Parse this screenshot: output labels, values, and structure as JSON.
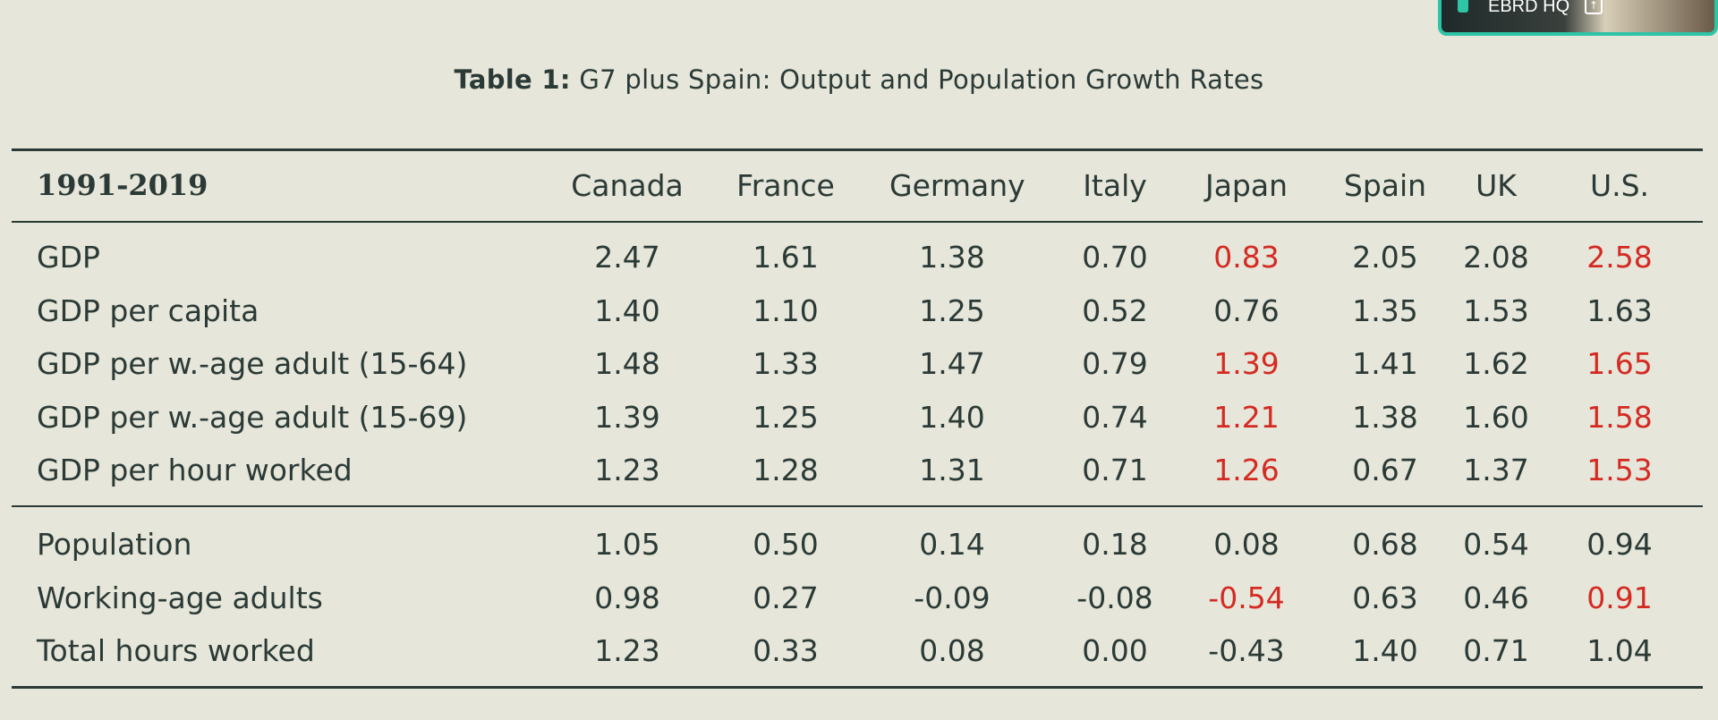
{
  "overlay": {
    "video_label": "EBRD HQ",
    "accent_color": "#2ec4a6"
  },
  "caption": {
    "prefix": "Table 1:",
    "text": "G7 plus Spain: Output and Population Growth Rates"
  },
  "table": {
    "period_label": "1991-2019",
    "columns": [
      "Canada",
      "France",
      "Germany",
      "Italy",
      "Japan",
      "Spain",
      "UK",
      "U.S."
    ],
    "highlight_color": "#d42a22",
    "groups": [
      {
        "rows": [
          {
            "label": "GDP",
            "values": [
              "2.47",
              "1.61",
              "1.38",
              "0.70",
              "0.83",
              "2.05",
              "2.08",
              "2.58"
            ],
            "red": [
              false,
              false,
              false,
              false,
              true,
              false,
              false,
              true
            ]
          },
          {
            "label": "GDP per capita",
            "values": [
              "1.40",
              "1.10",
              "1.25",
              "0.52",
              "0.76",
              "1.35",
              "1.53",
              "1.63"
            ],
            "red": [
              false,
              false,
              false,
              false,
              false,
              false,
              false,
              false
            ]
          },
          {
            "label": "GDP per w.-age adult (15-64)",
            "values": [
              "1.48",
              "1.33",
              "1.47",
              "0.79",
              "1.39",
              "1.41",
              "1.62",
              "1.65"
            ],
            "red": [
              false,
              false,
              false,
              false,
              true,
              false,
              false,
              true
            ]
          },
          {
            "label": "GDP per w.-age adult (15-69)",
            "values": [
              "1.39",
              "1.25",
              "1.40",
              "0.74",
              "1.21",
              "1.38",
              "1.60",
              "1.58"
            ],
            "red": [
              false,
              false,
              false,
              false,
              true,
              false,
              false,
              true
            ]
          },
          {
            "label": "GDP per hour worked",
            "values": [
              "1.23",
              "1.28",
              "1.31",
              "0.71",
              "1.26",
              "0.67",
              "1.37",
              "1.53"
            ],
            "red": [
              false,
              false,
              false,
              false,
              true,
              false,
              false,
              true
            ]
          }
        ]
      },
      {
        "rows": [
          {
            "label": "Population",
            "values": [
              "1.05",
              "0.50",
              "0.14",
              "0.18",
              "0.08",
              "0.68",
              "0.54",
              "0.94"
            ],
            "red": [
              false,
              false,
              false,
              false,
              false,
              false,
              false,
              false
            ]
          },
          {
            "label": "Working-age adults",
            "values": [
              "0.98",
              "0.27",
              "-0.09",
              "-0.08",
              "-0.54",
              "0.63",
              "0.46",
              "0.91"
            ],
            "red": [
              false,
              false,
              false,
              false,
              true,
              false,
              false,
              true
            ]
          },
          {
            "label": "Total hours worked",
            "values": [
              "1.23",
              "0.33",
              "0.08",
              "0.00",
              "-0.43",
              "1.40",
              "0.71",
              "1.04"
            ],
            "red": [
              false,
              false,
              false,
              false,
              false,
              false,
              false,
              false
            ]
          }
        ]
      }
    ]
  }
}
